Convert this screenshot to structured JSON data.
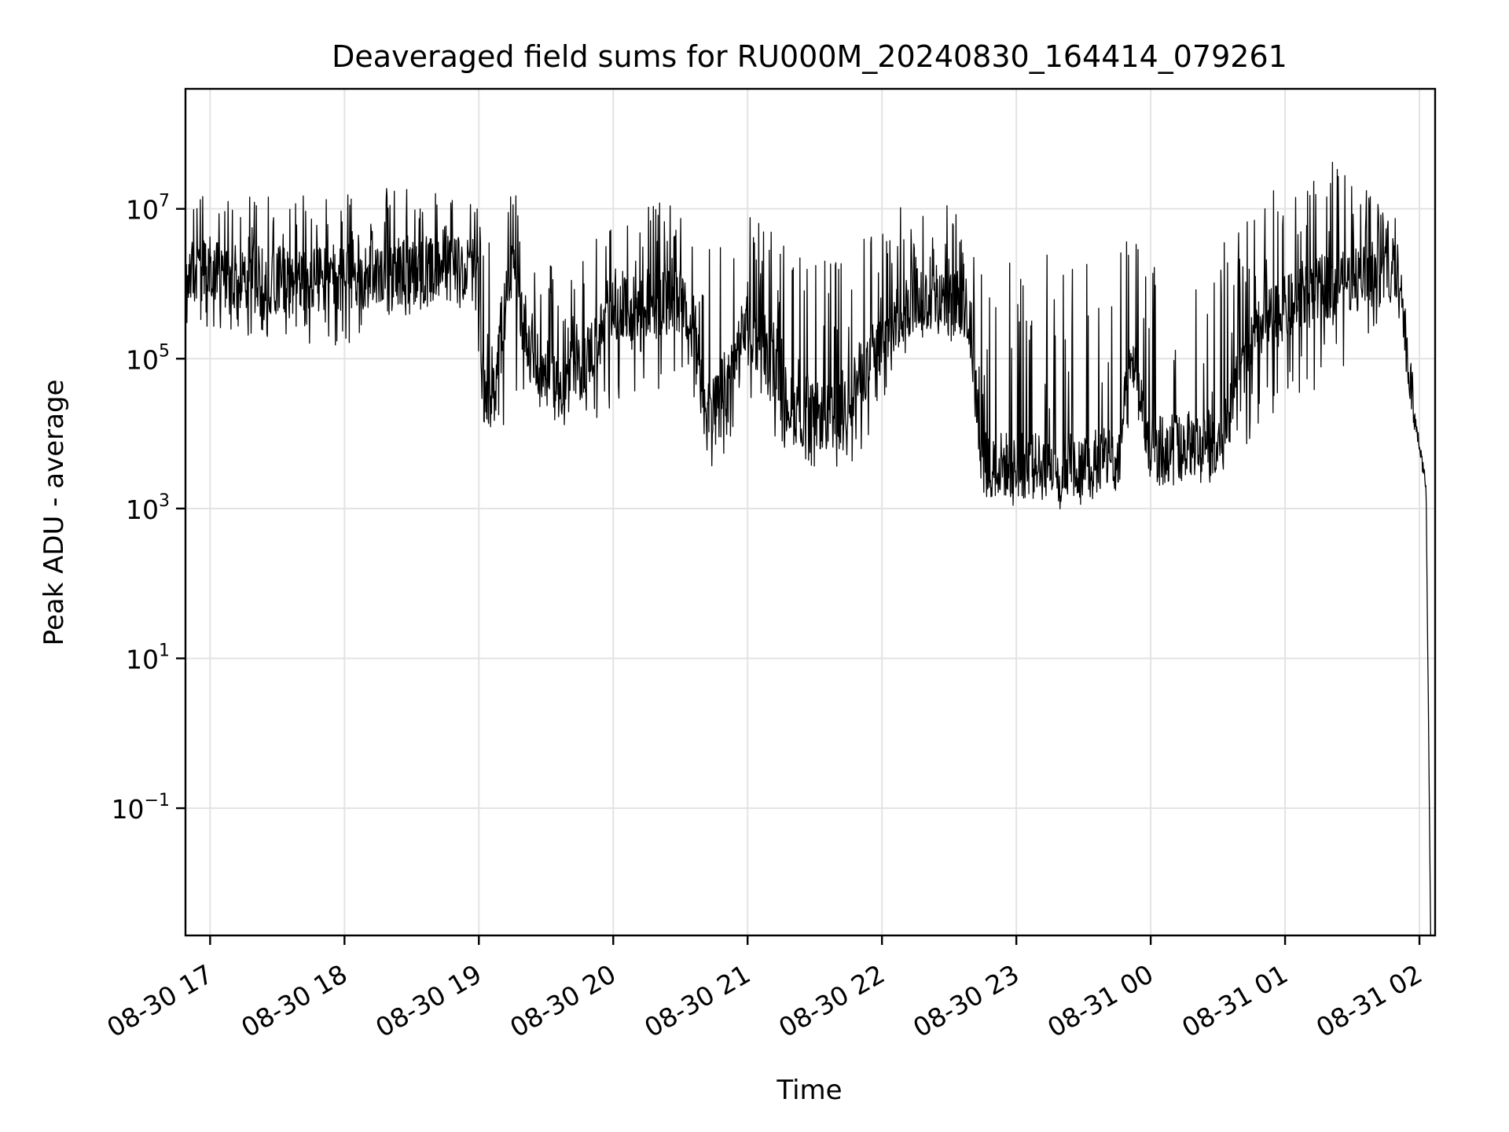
{
  "chart_data": {
    "type": "line",
    "title": "Deaveraged field sums for RU000M_20240830_164414_079261",
    "xlabel": "Time",
    "ylabel": "Peak ADU - average",
    "yscale": "log",
    "xlim": [
      "2024-08-30 16:49",
      "2024-08-31 02:07"
    ],
    "ylim": [
      0.002,
      400000000
    ],
    "grid": true,
    "line_color": "#000000",
    "x_ticks": [
      {
        "value": "2024-08-30 17:00",
        "label": "08-30 17"
      },
      {
        "value": "2024-08-30 18:00",
        "label": "08-30 18"
      },
      {
        "value": "2024-08-30 19:00",
        "label": "08-30 19"
      },
      {
        "value": "2024-08-30 20:00",
        "label": "08-30 20"
      },
      {
        "value": "2024-08-30 21:00",
        "label": "08-30 21"
      },
      {
        "value": "2024-08-30 22:00",
        "label": "08-30 22"
      },
      {
        "value": "2024-08-30 23:00",
        "label": "08-30 23"
      },
      {
        "value": "2024-08-31 00:00",
        "label": "08-31 00"
      },
      {
        "value": "2024-08-31 01:00",
        "label": "08-31 01"
      },
      {
        "value": "2024-08-31 02:00",
        "label": "08-31 02"
      }
    ],
    "y_ticks": [
      {
        "value": 10000000,
        "base": "10",
        "exp": "7"
      },
      {
        "value": 100000,
        "base": "10",
        "exp": "5"
      },
      {
        "value": 1000,
        "base": "10",
        "exp": "3"
      },
      {
        "value": 10,
        "base": "10",
        "exp": "1"
      },
      {
        "value": 0.1,
        "base": "10",
        "exp": "−1"
      }
    ],
    "envelope": [
      {
        "t": "2024-08-30 16:49",
        "base": 1400000,
        "low": 300000,
        "high": 15000000
      },
      {
        "t": "2024-08-30 17:30",
        "base": 1100000,
        "low": 150000,
        "high": 15000000
      },
      {
        "t": "2024-08-30 18:00",
        "base": 1200000,
        "low": 150000,
        "high": 18000000
      },
      {
        "t": "2024-08-30 18:30",
        "base": 1500000,
        "low": 400000,
        "high": 20000000
      },
      {
        "t": "2024-08-30 18:58",
        "base": 1600000,
        "low": 500000,
        "high": 15000000
      },
      {
        "t": "2024-08-30 19:03",
        "base": 20000,
        "low": 5000,
        "high": 3000000
      },
      {
        "t": "2024-08-30 19:15",
        "base": 1500000,
        "low": 10000,
        "high": 20000000
      },
      {
        "t": "2024-08-30 19:25",
        "base": 80000,
        "low": 20000,
        "high": 3000000
      },
      {
        "t": "2024-08-30 19:40",
        "base": 40000,
        "low": 8000,
        "high": 1000000
      },
      {
        "t": "2024-08-30 20:00",
        "base": 400000,
        "low": 20000,
        "high": 12000000
      },
      {
        "t": "2024-08-30 20:30",
        "base": 600000,
        "low": 50000,
        "high": 12000000
      },
      {
        "t": "2024-08-30 20:45",
        "base": 20000,
        "low": 3000,
        "high": 3000000
      },
      {
        "t": "2024-08-30 21:00",
        "base": 300000,
        "low": 20000,
        "high": 12000000
      },
      {
        "t": "2024-08-30 21:20",
        "base": 20000,
        "low": 5000,
        "high": 3000000
      },
      {
        "t": "2024-08-30 21:40",
        "base": 15000,
        "low": 2500,
        "high": 2000000
      },
      {
        "t": "2024-08-30 21:50",
        "base": 60000,
        "low": 5000,
        "high": 5000000
      },
      {
        "t": "2024-08-30 22:15",
        "base": 700000,
        "low": 200000,
        "high": 15000000
      },
      {
        "t": "2024-08-30 22:38",
        "base": 500000,
        "low": 150000,
        "high": 12000000
      },
      {
        "t": "2024-08-30 22:45",
        "base": 4000,
        "low": 1200,
        "high": 3000000
      },
      {
        "t": "2024-08-30 23:15",
        "base": 3500,
        "low": 900,
        "high": 3000000
      },
      {
        "t": "2024-08-30 23:45",
        "base": 5000,
        "low": 1500,
        "high": 3000000
      },
      {
        "t": "2024-08-30 23:52",
        "base": 100000,
        "low": 20000,
        "high": 5000000
      },
      {
        "t": "2024-08-31 00:00",
        "base": 6000,
        "low": 2000,
        "high": 3000000
      },
      {
        "t": "2024-08-31 00:30",
        "base": 8000,
        "low": 2000,
        "high": 4000000
      },
      {
        "t": "2024-08-31 00:50",
        "base": 300000,
        "low": 15000,
        "high": 15000000
      },
      {
        "t": "2024-08-31 01:20",
        "base": 1000000,
        "low": 50000,
        "high": 50000000
      },
      {
        "t": "2024-08-31 01:50",
        "base": 1500000,
        "low": 500000,
        "high": 8000000
      },
      {
        "t": "2024-08-31 01:58",
        "base": 15000,
        "low": 10000,
        "high": 30000
      },
      {
        "t": "2024-08-31 02:03",
        "base": 2000,
        "low": 1500,
        "high": 2500
      },
      {
        "t": "2024-08-31 02:05",
        "base": 0.002,
        "low": 0.002,
        "high": 0.002
      }
    ]
  }
}
